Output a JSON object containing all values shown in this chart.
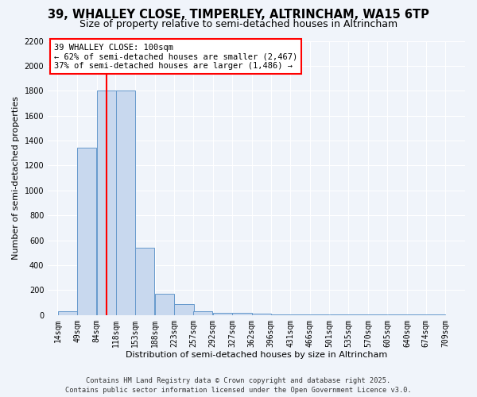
{
  "title": "39, WHALLEY CLOSE, TIMPERLEY, ALTRINCHAM, WA15 6TP",
  "subtitle": "Size of property relative to semi-detached houses in Altrincham",
  "xlabel": "Distribution of semi-detached houses by size in Altrincham",
  "ylabel": "Number of semi-detached properties",
  "bin_edges": [
    14,
    49,
    84,
    118,
    153,
    188,
    223,
    257,
    292,
    327,
    362,
    396,
    431,
    466,
    501,
    535,
    570,
    605,
    640,
    674,
    709
  ],
  "bar_heights": [
    30,
    1340,
    1800,
    1800,
    540,
    170,
    90,
    30,
    20,
    15,
    10,
    8,
    5,
    5,
    5,
    5,
    5,
    5,
    5,
    5
  ],
  "bar_color": "#c8d8ee",
  "bar_edge_color": "#6699cc",
  "red_line_x": 101,
  "annotation_title": "39 WHALLEY CLOSE: 100sqm",
  "annotation_line1": "← 62% of semi-detached houses are smaller (2,467)",
  "annotation_line2": "37% of semi-detached houses are larger (1,486) →",
  "ylim": [
    0,
    2200
  ],
  "yticks": [
    0,
    200,
    400,
    600,
    800,
    1000,
    1200,
    1400,
    1600,
    1800,
    2000,
    2200
  ],
  "footer1": "Contains HM Land Registry data © Crown copyright and database right 2025.",
  "footer2": "Contains public sector information licensed under the Open Government Licence v3.0.",
  "background_color": "#f0f4fa",
  "plot_bg_color": "#f0f4fa",
  "grid_color": "#ffffff",
  "title_fontsize": 10.5,
  "subtitle_fontsize": 9,
  "axis_label_fontsize": 8,
  "tick_fontsize": 7,
  "annotation_fontsize": 7.5,
  "footer_fontsize": 6.2
}
